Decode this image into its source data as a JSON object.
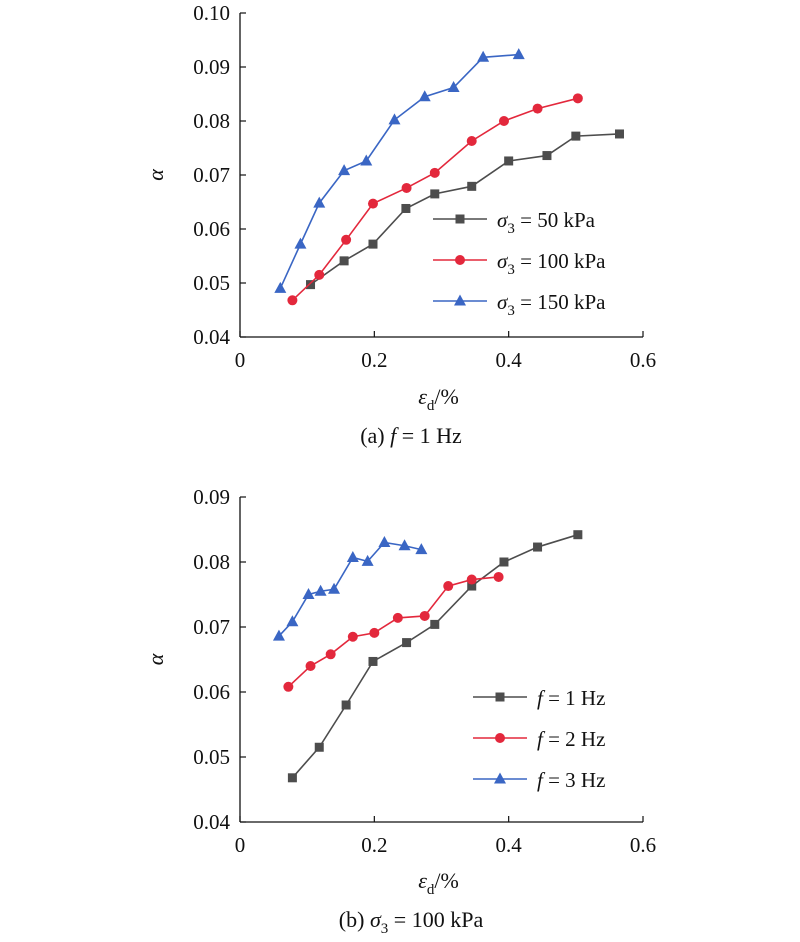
{
  "chart_data": [
    {
      "type": "line",
      "caption": "(a) f = 1 Hz",
      "caption_parts": {
        "prefix": "(a) ",
        "var": "f",
        "rest": " = 1 Hz"
      },
      "xlabel": {
        "var": "ε",
        "sub": "d",
        "rest": "/%"
      },
      "ylabel": "α",
      "xlim": [
        0,
        0.6
      ],
      "ylim": [
        0.04,
        0.1
      ],
      "xticks": [
        "0",
        "0.2",
        "0.4",
        "0.6"
      ],
      "yticks": [
        "0.04",
        "0.05",
        "0.06",
        "0.07",
        "0.08",
        "0.09",
        "0.10"
      ],
      "legend_position": "lower-right",
      "grid": false,
      "series": [
        {
          "legend": {
            "var": "σ",
            "sub": "3",
            "rest": " = 50 kPa"
          },
          "color": "#4d4d4d",
          "marker": "square",
          "x": [
            0.105,
            0.155,
            0.198,
            0.247,
            0.29,
            0.345,
            0.4,
            0.457,
            0.5,
            0.565
          ],
          "y": [
            0.0497,
            0.0541,
            0.0572,
            0.0638,
            0.0665,
            0.0679,
            0.0726,
            0.0736,
            0.0772,
            0.0776
          ]
        },
        {
          "legend": {
            "var": "σ",
            "sub": "3",
            "rest": " = 100 kPa"
          },
          "color": "#e3283c",
          "marker": "circle",
          "x": [
            0.078,
            0.118,
            0.158,
            0.198,
            0.248,
            0.29,
            0.345,
            0.393,
            0.443,
            0.503
          ],
          "y": [
            0.0468,
            0.0515,
            0.058,
            0.0647,
            0.0676,
            0.0704,
            0.0763,
            0.08,
            0.0823,
            0.0842
          ]
        },
        {
          "legend": {
            "var": "σ",
            "sub": "3",
            "rest": " = 150 kPa"
          },
          "color": "#3a66c4",
          "marker": "triangle",
          "x": [
            0.06,
            0.09,
            0.118,
            0.155,
            0.188,
            0.23,
            0.275,
            0.318,
            0.362,
            0.415
          ],
          "y": [
            0.049,
            0.0572,
            0.0648,
            0.0708,
            0.0726,
            0.0802,
            0.0845,
            0.0862,
            0.0918,
            0.0923
          ]
        }
      ]
    },
    {
      "type": "line",
      "caption": "(b) σ3 = 100 kPa",
      "caption_parts": {
        "prefix": "(b) ",
        "var": "σ",
        "sub": "3",
        "rest": " = 100 kPa"
      },
      "xlabel": {
        "var": "ε",
        "sub": "d",
        "rest": "/%"
      },
      "ylabel": "α",
      "xlim": [
        0,
        0.6
      ],
      "ylim": [
        0.04,
        0.09
      ],
      "xticks": [
        "0",
        "0.2",
        "0.4",
        "0.6"
      ],
      "yticks": [
        "0.04",
        "0.05",
        "0.06",
        "0.07",
        "0.08",
        "0.09"
      ],
      "legend_position": "lower-right",
      "grid": false,
      "series": [
        {
          "legend": {
            "var": "f",
            "rest": " = 1 Hz"
          },
          "color": "#4d4d4d",
          "marker": "square",
          "x": [
            0.078,
            0.118,
            0.158,
            0.198,
            0.248,
            0.29,
            0.345,
            0.393,
            0.443,
            0.503
          ],
          "y": [
            0.0468,
            0.0515,
            0.058,
            0.0647,
            0.0676,
            0.0704,
            0.0763,
            0.08,
            0.0823,
            0.0842
          ]
        },
        {
          "legend": {
            "var": "f",
            "rest": " = 2 Hz"
          },
          "color": "#e3283c",
          "marker": "circle",
          "x": [
            0.072,
            0.105,
            0.135,
            0.168,
            0.2,
            0.235,
            0.275,
            0.31,
            0.345,
            0.385
          ],
          "y": [
            0.0608,
            0.064,
            0.0658,
            0.0685,
            0.0691,
            0.0714,
            0.0717,
            0.0763,
            0.0773,
            0.0777
          ]
        },
        {
          "legend": {
            "var": "f",
            "rest": " = 3 Hz"
          },
          "color": "#3a66c4",
          "marker": "triangle",
          "x": [
            0.058,
            0.078,
            0.102,
            0.12,
            0.14,
            0.168,
            0.19,
            0.215,
            0.245,
            0.27
          ],
          "y": [
            0.0686,
            0.0708,
            0.075,
            0.0755,
            0.0758,
            0.0807,
            0.0801,
            0.083,
            0.0825,
            0.0819
          ]
        }
      ]
    }
  ]
}
